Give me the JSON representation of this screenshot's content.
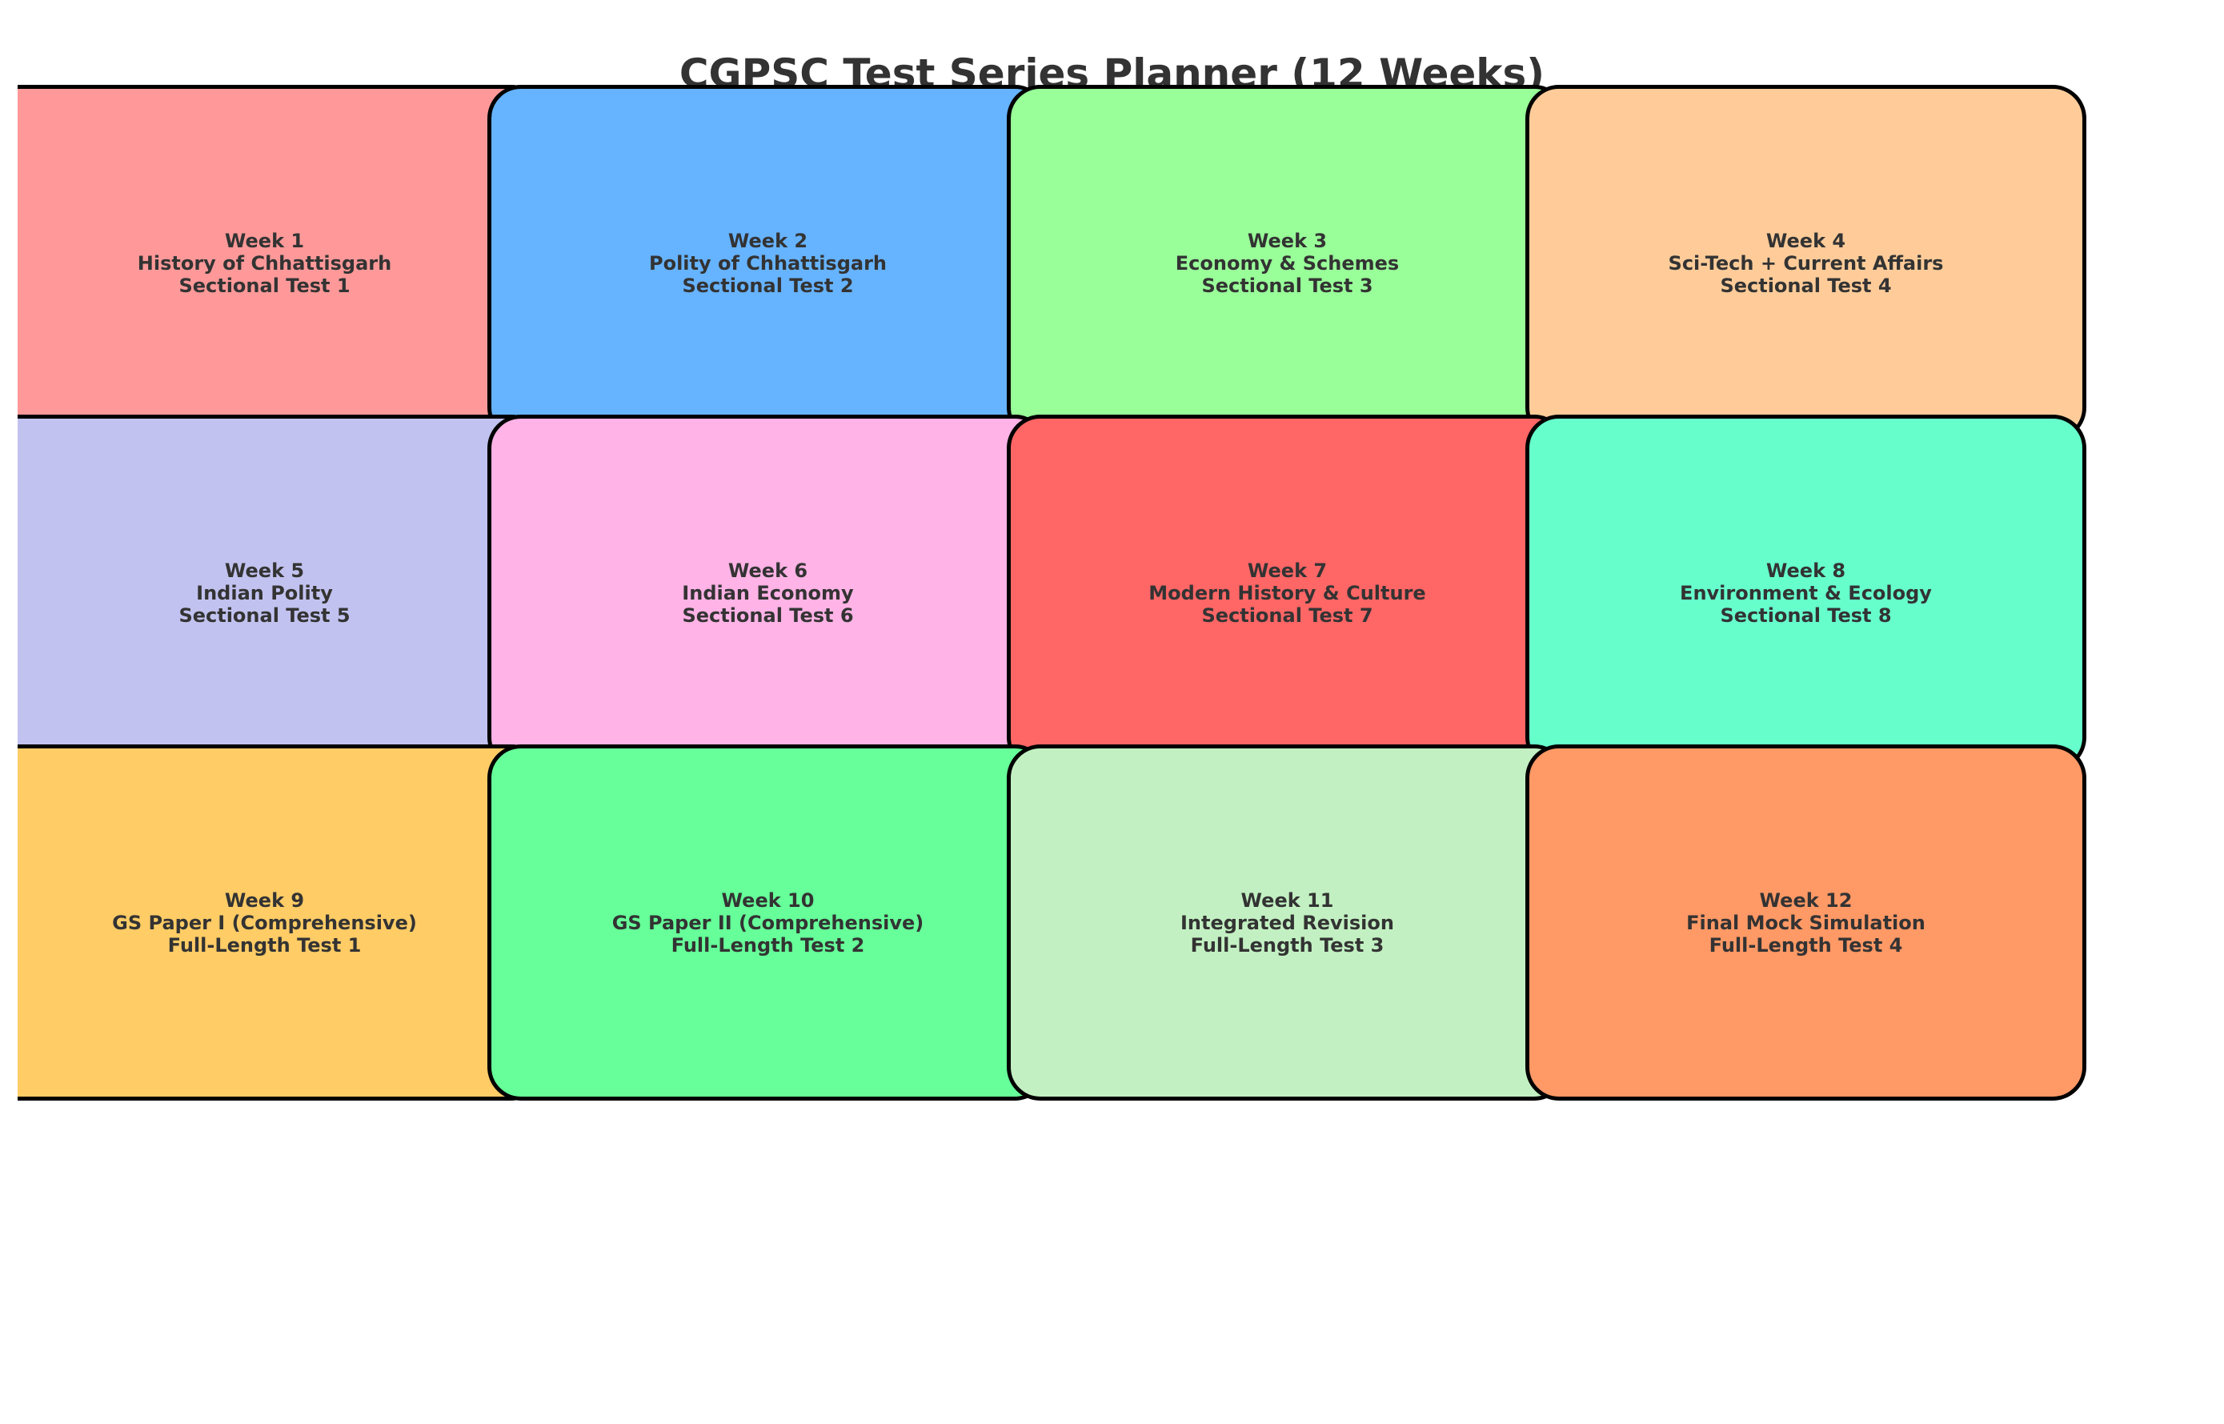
{
  "title": "CGPSC Test Series Planner (12 Weeks)",
  "weeks": [
    {
      "week": "Week 1",
      "topic": "History of Chhattisgarh",
      "test": "Sectional Test 1",
      "color": "#FF9999"
    },
    {
      "week": "Week 2",
      "topic": "Polity of Chhattisgarh",
      "test": "Sectional Test 2",
      "color": "#66B3FF"
    },
    {
      "week": "Week 3",
      "topic": "Economy & Schemes",
      "test": "Sectional Test 3",
      "color": "#99FF99"
    },
    {
      "week": "Week 4",
      "topic": "Sci-Tech + Current Affairs",
      "test": "Sectional Test 4",
      "color": "#FFCC99"
    },
    {
      "week": "Week 5",
      "topic": "Indian Polity",
      "test": "Sectional Test 5",
      "color": "#C2C2F0"
    },
    {
      "week": "Week 6",
      "topic": "Indian Economy",
      "test": "Sectional Test 6",
      "color": "#FFB3E6"
    },
    {
      "week": "Week 7",
      "topic": "Modern History & Culture",
      "test": "Sectional Test 7",
      "color": "#FF6666"
    },
    {
      "week": "Week 8",
      "topic": "Environment & Ecology",
      "test": "Sectional Test 8",
      "color": "#66FFCC"
    },
    {
      "week": "Week 9",
      "topic": "GS Paper I (Comprehensive)",
      "test": "Full-Length Test 1",
      "color": "#FFCC66"
    },
    {
      "week": "Week 10",
      "topic": "GS Paper II (Comprehensive)",
      "test": "Full-Length Test 2",
      "color": "#66FF99"
    },
    {
      "week": "Week 11",
      "topic": "Integrated Revision",
      "test": "Full-Length Test 3",
      "color": "#C2F0C2"
    },
    {
      "week": "Week 12",
      "topic": "Final Mock Simulation",
      "test": "Full-Length Test 4",
      "color": "#FF9966"
    }
  ]
}
